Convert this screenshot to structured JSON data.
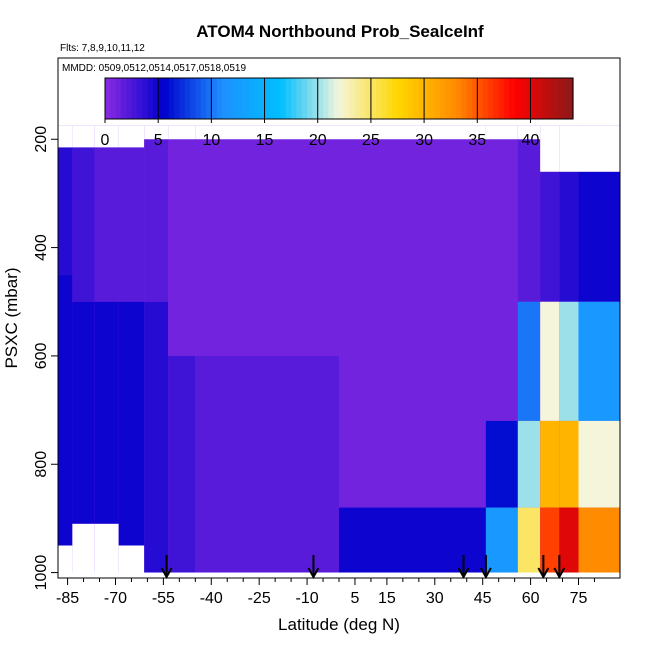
{
  "chart_data": {
    "type": "heatmap",
    "title": "ATOM4 Northbound Prob_SealceInf",
    "flights_note": "Flts: 7,8,9,10,11,12",
    "dates_note": "MMDD: 0509,0512,0514,0517,0518,0519",
    "xlabel": "Latitude (deg N)",
    "ylabel": "PSXC (mbar)",
    "xlim": [
      -88,
      88
    ],
    "ylim": [
      1010,
      50
    ],
    "y_inverted": true,
    "x_ticks": [
      "-85",
      "-70",
      "-55",
      "-40",
      "-25",
      "-10",
      "5",
      "15",
      "30",
      "45",
      "60",
      "75"
    ],
    "x_tick_values": [
      -85,
      -70,
      -55,
      -40,
      -25,
      -10,
      5,
      15,
      30,
      45,
      60,
      75
    ],
    "y_ticks": [
      "200",
      "400",
      "600",
      "800",
      "1000"
    ],
    "y_tick_values": [
      200,
      400,
      600,
      800,
      1000
    ],
    "colorbar": {
      "min": 0,
      "max": 44,
      "ticks": [
        "0",
        "5",
        "10",
        "15",
        "20",
        "25",
        "30",
        "35",
        "40"
      ],
      "tick_values": [
        0,
        5,
        10,
        15,
        20,
        25,
        30,
        35,
        40
      ],
      "colors": [
        "#8a2be2",
        "#0000cd",
        "#1e90ff",
        "#00bfff",
        "#f5f5dc",
        "#ffd700",
        "#ff8c00",
        "#ff0000",
        "#8b1a1a"
      ]
    },
    "arrow_latitudes": [
      -54,
      -8,
      39,
      46,
      64,
      69
    ],
    "columns": [
      {
        "lat": -87,
        "top": 215,
        "bottom": 950,
        "bands": [
          {
            "p": 450,
            "v": 4
          },
          {
            "p": 950,
            "v": 5
          }
        ]
      },
      {
        "lat": -80,
        "top": 215,
        "bottom": 910,
        "bands": [
          {
            "p": 500,
            "v": 3
          },
          {
            "p": 910,
            "v": 5
          }
        ]
      },
      {
        "lat": -73,
        "top": 215,
        "bottom": 910,
        "bands": [
          {
            "p": 500,
            "v": 2
          },
          {
            "p": 910,
            "v": 5
          }
        ]
      },
      {
        "lat": -65,
        "top": 215,
        "bottom": 950,
        "bands": [
          {
            "p": 500,
            "v": 2
          },
          {
            "p": 950,
            "v": 5
          }
        ]
      },
      {
        "lat": -57,
        "top": 200,
        "bottom": 1000,
        "bands": [
          {
            "p": 500,
            "v": 2
          },
          {
            "p": 1000,
            "v": 4
          }
        ]
      },
      {
        "lat": -50,
        "top": 200,
        "bottom": 1000,
        "bands": [
          {
            "p": 600,
            "v": 1
          },
          {
            "p": 1000,
            "v": 3
          }
        ]
      },
      {
        "lat": -40,
        "top": 200,
        "bottom": 1000,
        "bands": [
          {
            "p": 600,
            "v": 1
          },
          {
            "p": 1000,
            "v": 2
          }
        ]
      },
      {
        "lat": 40,
        "top": 200,
        "bottom": 1000,
        "bands": [
          {
            "p": 880,
            "v": 1
          },
          {
            "p": 1000,
            "v": 5
          }
        ]
      },
      {
        "lat": 52,
        "top": 200,
        "bottom": 1000,
        "bands": [
          {
            "p": 720,
            "v": 1
          },
          {
            "p": 880,
            "v": 6
          },
          {
            "p": 1000,
            "v": 12
          }
        ]
      },
      {
        "lat": 60,
        "top": 200,
        "bottom": 1000,
        "bands": [
          {
            "p": 500,
            "v": 2
          },
          {
            "p": 720,
            "v": 10
          },
          {
            "p": 880,
            "v": 20
          },
          {
            "p": 1000,
            "v": 25
          }
        ]
      },
      {
        "lat": 66,
        "top": 260,
        "bottom": 1000,
        "bands": [
          {
            "p": 500,
            "v": 3
          },
          {
            "p": 720,
            "v": 22
          },
          {
            "p": 880,
            "v": 30
          },
          {
            "p": 1000,
            "v": 36
          }
        ]
      },
      {
        "lat": 72,
        "top": 260,
        "bottom": 1000,
        "bands": [
          {
            "p": 500,
            "v": 4
          },
          {
            "p": 720,
            "v": 20
          },
          {
            "p": 880,
            "v": 30
          },
          {
            "p": 1000,
            "v": 40
          }
        ]
      },
      {
        "lat": 78,
        "top": 260,
        "bottom": 1000,
        "bands": [
          {
            "p": 500,
            "v": 5
          },
          {
            "p": 720,
            "v": 12
          },
          {
            "p": 880,
            "v": 22
          },
          {
            "p": 1000,
            "v": 33
          }
        ]
      }
    ]
  }
}
